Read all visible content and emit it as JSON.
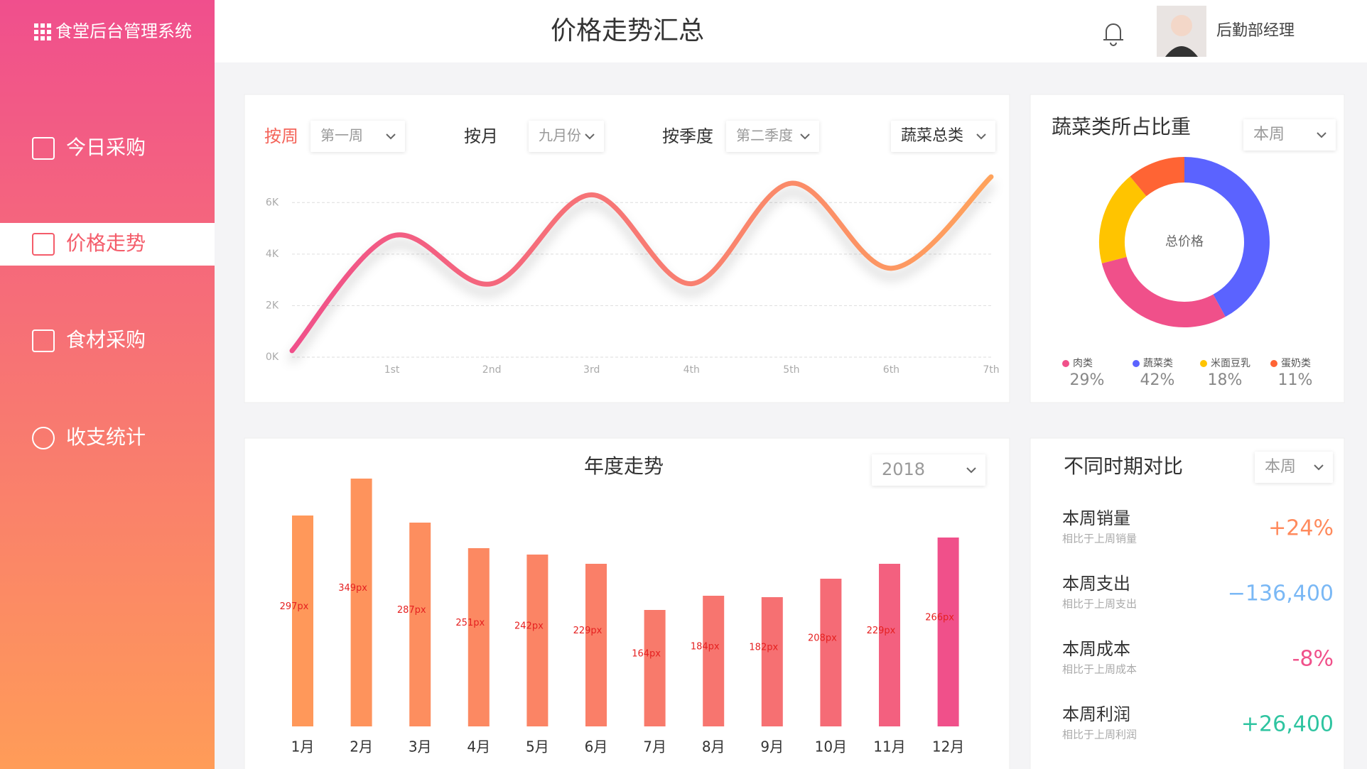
{
  "sidebar": {
    "title": "食堂后台管理系统",
    "menu": [
      "今日采购",
      "价格走势",
      "食材采购",
      "收支统计"
    ],
    "active": 1
  },
  "header": {
    "title": "价格走势汇总",
    "user": "后勤部经理"
  },
  "price_trend": {
    "tabs": [
      {
        "label": "按周",
        "option": "第一周"
      },
      {
        "label": "按月",
        "option": "九月份"
      },
      {
        "label": "按季度",
        "option": "第二季度"
      }
    ],
    "active_tab": 0,
    "category_filter": "蔬菜总类"
  },
  "chart_data": [
    {
      "type": "line",
      "categories": [
        null,
        "1st",
        "2nd",
        "3rd",
        "4th",
        "5th",
        "6th",
        "7th"
      ],
      "values": [
        250,
        4700,
        2850,
        6300,
        2850,
        6750,
        3450,
        7000
      ],
      "colors": [
        "#f0508a",
        "#ffa35c"
      ],
      "ylim": [
        0,
        7000
      ],
      "yticks": [
        {
          "value": 0,
          "label": "0K"
        },
        {
          "value": 2000,
          "label": "2K"
        },
        {
          "value": 4000,
          "label": "4K"
        },
        {
          "value": 6000,
          "label": "6K"
        }
      ],
      "grid": true
    },
    {
      "type": "pie",
      "title": "蔬菜类所占比重",
      "filter": "本周",
      "center_label": "总价格",
      "categories": [
        "肉类",
        "蔬菜类",
        "米面豆乳",
        "蛋奶类"
      ],
      "values": [
        29,
        42,
        18,
        11
      ],
      "value_labels": [
        "29%",
        "42%",
        "18%",
        "11%"
      ],
      "colors": [
        "#f0508a",
        "#5b63ff",
        "#ffc400",
        "#ff6434"
      ]
    },
    {
      "type": "bar",
      "title": "年度走势",
      "filter": "2018",
      "categories": [
        "1月",
        "2月",
        "3月",
        "4月",
        "5月",
        "6月",
        "7月",
        "8月",
        "9月",
        "10月",
        "11月",
        "12月"
      ],
      "values": [
        297,
        349,
        287,
        251,
        242,
        229,
        164,
        184,
        182,
        208,
        229,
        266
      ],
      "value_labels": [
        "297px",
        "349px",
        "287px",
        "251px",
        "242px",
        "229px",
        "164px",
        "184px",
        "182px",
        "208px",
        "229px",
        "266px"
      ],
      "colors": [
        "#ff985a",
        "#fe935c",
        "#fd8e5f",
        "#fc8962",
        "#fb8465",
        "#fa7f68",
        "#f87a6b",
        "#f7756f",
        "#f67072",
        "#f56b76",
        "#f3607f",
        "#f0508a"
      ]
    }
  ],
  "comparison": {
    "title": "不同时期对比",
    "filter": "本周",
    "items": [
      {
        "label": "本周销量",
        "note": "相比于上周销量",
        "value": "+24%",
        "color": "#ff8a5c"
      },
      {
        "label": "本周支出",
        "note": "相比于上周支出",
        "value": "−136,400",
        "color": "#7ab8f5"
      },
      {
        "label": "本周成本",
        "note": "相比于上周成本",
        "value": "-8%",
        "color": "#f0508a"
      },
      {
        "label": "本周利润",
        "note": "相比于上周利润",
        "value": "+26,400",
        "color": "#2ec4a0"
      }
    ]
  }
}
